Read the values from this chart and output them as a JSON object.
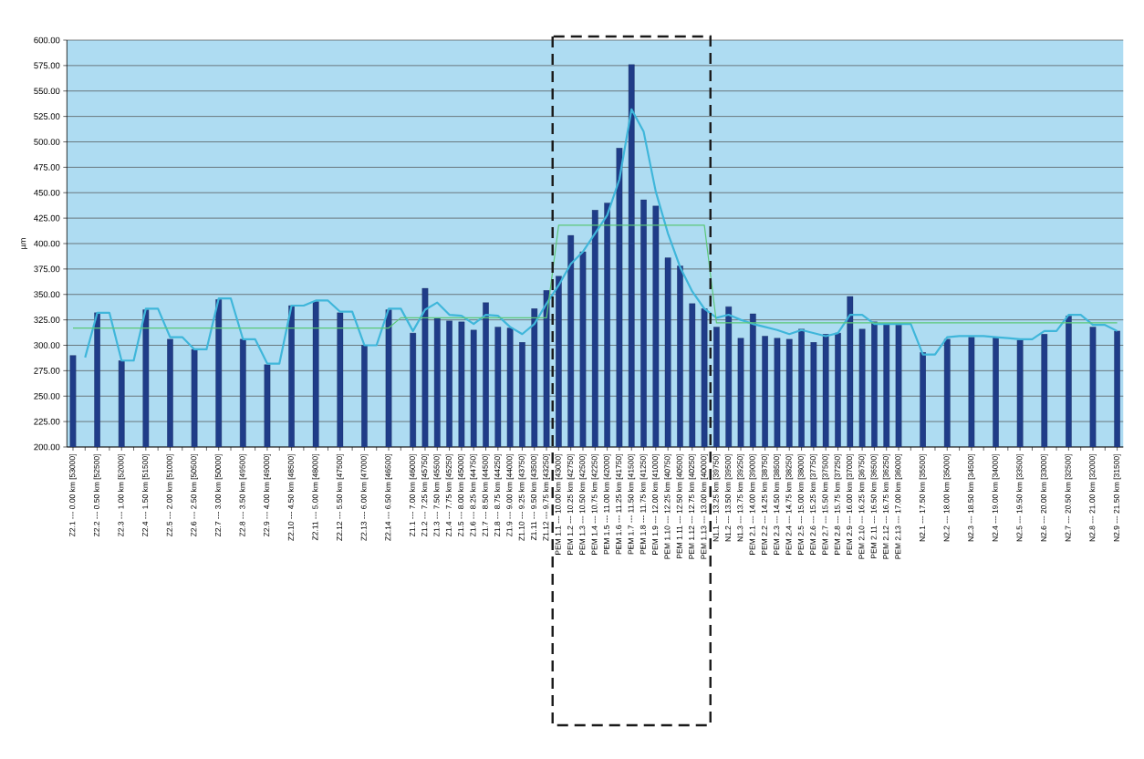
{
  "chart_data": {
    "type": "bar",
    "ylabel": "µm",
    "categories": [
      "Z2.1 --- 0.00 km [53000]",
      null,
      "Z2.2 --- 0.50 km [52500]",
      null,
      "Z2.3 --- 1.00 km [52000]",
      null,
      "Z2.4 --- 1.50 km [51500]",
      null,
      "Z2.5 --- 2.00 km [51000]",
      null,
      "Z2.6 --- 2.50 km [50500]",
      null,
      "Z2.7 --- 3.00 km [50000]",
      null,
      "Z2.8 --- 3.50 km [49500]",
      null,
      "Z2.9 --- 4.00 km [49000]",
      null,
      "Z2.10 --- 4.50 km [48500]",
      null,
      "Z2.11 --- 5.00 km [48000]",
      null,
      "Z2.12 --- 5.50 km [47500]",
      null,
      "Z2.13 --- 6.00 km [47000]",
      null,
      "Z2.14 --- 6.50 km [46500]",
      null,
      "Z1.1 --- 7.00 km [46000]",
      "Z1.2 --- 7.25 km [45750]",
      "Z1.3 --- 7.50 km [45500]",
      "Z1.4 --- 7.75 km [45250]",
      "Z1.5 --- 8.00 km [45000]",
      "Z1.6 --- 8.25 km [44750]",
      "Z1.7 --- 8.50 km [44500]",
      "Z1.8 --- 8.75 km [44250]",
      "Z1.9 --- 9.00 km [44000]",
      "Z1.10 --- 9.25 km [43750]",
      "Z1.11 --- 9.50 km [43500]",
      "Z1.12 --- 9.75 km [43250]",
      "PEM 1.1 --- 10.00 km [43000]",
      "PEM 1.2 --- 10.25 km [42750]",
      "PEM 1.3 --- 10.50 km [42500]",
      "PEM 1.4 --- 10.75 km [42250]",
      "PEM 1.5 --- 11.00 km [42000]",
      "PEM 1.6 --- 11.25 km [41750]",
      "PEM 1.7 --- 11.50 km [41500]",
      "PEM 1.8 --- 11.75 km [41250]",
      "PEM 1.9 --- 12.00 km [41000]",
      "PEM 1.10 --- 12.25 km [40750]",
      "PEM 1.11 --- 12.50 km [40500]",
      "PEM 1.12 --- 12.75 km [40250]",
      "PEM 1.13 --- 13.00 km [40000]",
      "N1.1 --- 13.25 km [39750]",
      "N1.2 --- 13.50 km [39500]",
      "N1.3 --- 13.75 km [39250]",
      "PEM 2.1 --- 14.00 km [39000]",
      "PEM 2.2 --- 14.25 km [38750]",
      "PEM 2.3 --- 14.50 km [38500]",
      "PEM 2.4 --- 14.75 km [38250]",
      "PEM 2.5 --- 15.00 km [38000]",
      "PEM 2.6 --- 15.25 km [37750]",
      "PEM 2.7 --- 15.50 km [37500]",
      "PEM 2.8 --- 15.75 km [37250]",
      "PEM 2.9 --- 16.00 km [37000]",
      "PEM 2.10 --- 16.25 km [36750]",
      "PEM 2.11 --- 16.50 km [36500]",
      "PEM 2.12 --- 16.75 km [36250]",
      "PEM 2.13 --- 17.00 km [36000]",
      null,
      "N2.1 --- 17.50 km [35500]",
      null,
      "N2.2 --- 18.00 km [35000]",
      null,
      "N2.3 --- 18.50 km [34500]",
      null,
      "N2.4 --- 19.00 km [34000]",
      null,
      "N2.5 --- 19.50 km [33500]",
      null,
      "N2.6 --- 20.00 km [33000]",
      null,
      "N2.7 --- 20.50 km [32500]",
      null,
      "N2.8 --- 21.00 km [32000]",
      null,
      "N2.9 --- 21.50 km [31500]"
    ],
    "series": [
      {
        "color": "#1f3c88",
        "values": [
          290,
          null,
          332,
          null,
          285,
          null,
          335,
          null,
          306,
          null,
          296,
          null,
          345,
          null,
          306,
          null,
          281,
          null,
          339,
          null,
          343,
          null,
          332,
          null,
          300,
          null,
          335,
          null,
          312,
          356,
          327,
          324,
          323,
          315,
          342,
          318,
          317,
          303,
          336,
          354,
          368,
          408,
          392,
          433,
          440,
          494,
          576,
          443,
          437,
          386,
          378,
          341,
          336,
          318,
          338,
          307,
          331,
          309,
          307,
          306,
          316,
          303,
          311,
          312,
          348,
          316,
          323,
          321,
          320,
          null,
          293,
          null,
          306,
          null,
          308,
          null,
          308,
          null,
          305,
          null,
          311,
          null,
          329,
          null,
          318,
          null,
          314
        ]
      },
      {
        "type": "line",
        "color": "#3fb6da",
        "values": [
          null,
          288,
          332,
          332,
          285,
          285,
          336,
          336,
          308,
          308,
          296,
          296,
          346,
          346,
          306,
          306,
          282,
          282,
          339,
          339,
          344,
          344,
          333,
          333,
          300,
          300,
          336,
          336,
          314,
          335,
          342,
          330,
          329,
          321,
          330,
          329,
          318,
          311,
          321,
          341,
          359,
          380,
          392,
          410,
          428,
          463,
          532,
          510,
          451,
          410,
          377,
          353,
          336,
          327,
          330,
          325,
          321,
          318,
          315,
          311,
          315,
          312,
          309,
          312,
          330,
          330,
          321,
          321,
          321,
          321,
          291,
          291,
          308,
          309,
          309,
          309,
          308,
          307,
          306,
          306,
          314,
          314,
          330,
          330,
          320,
          320,
          314
        ]
      },
      {
        "type": "line",
        "color": "#5cc878",
        "values": [
          317,
          317,
          317,
          317,
          317,
          317,
          317,
          317,
          317,
          317,
          317,
          317,
          317,
          317,
          317,
          317,
          317,
          317,
          317,
          317,
          317,
          317,
          317,
          317,
          317,
          317,
          317,
          327,
          327,
          327,
          327,
          327,
          327,
          327,
          327,
          327,
          327,
          327,
          327,
          327,
          418,
          418,
          418,
          418,
          418,
          418,
          418,
          418,
          418,
          418,
          418,
          418,
          418,
          322,
          322,
          322,
          322,
          322,
          322,
          322,
          322,
          322,
          322,
          322,
          322,
          322,
          322,
          322,
          322,
          322,
          322,
          322,
          322,
          322,
          322,
          322,
          322,
          322,
          322,
          322,
          322,
          322,
          322,
          322,
          322,
          322,
          322
        ]
      }
    ],
    "ylim": [
      200,
      600
    ],
    "yticks": [
      {
        "value": 200,
        "label": "200.00"
      },
      {
        "value": 225,
        "label": "225.00"
      },
      {
        "value": 250,
        "label": "250.00"
      },
      {
        "value": 275,
        "label": "275.00"
      },
      {
        "value": 300,
        "label": "300.00"
      },
      {
        "value": 325,
        "label": "325.00"
      },
      {
        "value": 350,
        "label": "350.00"
      },
      {
        "value": 375,
        "label": "375.00"
      },
      {
        "value": 400,
        "label": "400.00"
      },
      {
        "value": 425,
        "label": "425.00"
      },
      {
        "value": 450,
        "label": "450.00"
      },
      {
        "value": 475,
        "label": "475.00"
      },
      {
        "value": 500,
        "label": "500.00"
      },
      {
        "value": 525,
        "label": "525.00"
      },
      {
        "value": 550,
        "label": "550.00"
      },
      {
        "value": 575,
        "label": "575.00"
      },
      {
        "value": 600,
        "label": "600.00"
      }
    ],
    "grid": "y"
  }
}
